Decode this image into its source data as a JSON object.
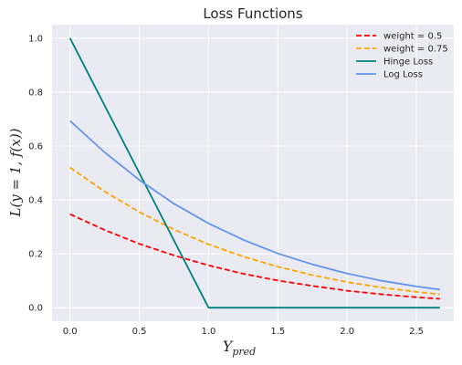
{
  "chart_data": {
    "type": "line",
    "title": "Loss Functions",
    "xlabel": "Y",
    "xlabel_sub": "pred",
    "ylabel": "L(y = 1, f(x))",
    "xlim": [
      -0.13,
      2.77
    ],
    "ylim": [
      -0.05,
      1.05
    ],
    "xticks": [
      0.0,
      0.5,
      1.0,
      1.5,
      2.0,
      2.5
    ],
    "xtick_labels": [
      "0.0",
      "0.5",
      "1.0",
      "1.5",
      "2.0",
      "2.5"
    ],
    "yticks": [
      0.0,
      0.2,
      0.4,
      0.6,
      0.8,
      1.0
    ],
    "ytick_labels": [
      "0.0",
      "0.2",
      "0.4",
      "0.6",
      "0.8",
      "1.0"
    ],
    "grid": true,
    "legend_position": "top-right",
    "series": [
      {
        "name": "weight = 0.5",
        "color": "#ff0000",
        "dashed": true,
        "x": [
          0.0,
          0.25,
          0.5,
          0.75,
          1.0,
          1.25,
          1.5,
          1.75,
          2.0,
          2.25,
          2.5,
          2.67
        ],
        "y": [
          0.347,
          0.288,
          0.237,
          0.194,
          0.157,
          0.126,
          0.101,
          0.081,
          0.063,
          0.05,
          0.039,
          0.033
        ]
      },
      {
        "name": "weight = 0.75",
        "color": "#ffa500",
        "dashed": true,
        "x": [
          0.0,
          0.25,
          0.5,
          0.75,
          1.0,
          1.25,
          1.5,
          1.75,
          2.0,
          2.25,
          2.5,
          2.67
        ],
        "y": [
          0.52,
          0.431,
          0.355,
          0.29,
          0.235,
          0.19,
          0.152,
          0.121,
          0.095,
          0.075,
          0.059,
          0.05
        ]
      },
      {
        "name": "Hinge Loss",
        "color": "#008080",
        "dashed": false,
        "x": [
          0.0,
          1.0,
          2.67
        ],
        "y": [
          1.0,
          0.0,
          0.0
        ]
      },
      {
        "name": "Log Loss",
        "color": "#6495ed",
        "dashed": false,
        "x": [
          0.0,
          0.25,
          0.5,
          0.75,
          1.0,
          1.25,
          1.5,
          1.75,
          2.0,
          2.25,
          2.5,
          2.67
        ],
        "y": [
          0.693,
          0.576,
          0.474,
          0.386,
          0.313,
          0.252,
          0.201,
          0.161,
          0.127,
          0.1,
          0.079,
          0.067
        ]
      }
    ]
  }
}
